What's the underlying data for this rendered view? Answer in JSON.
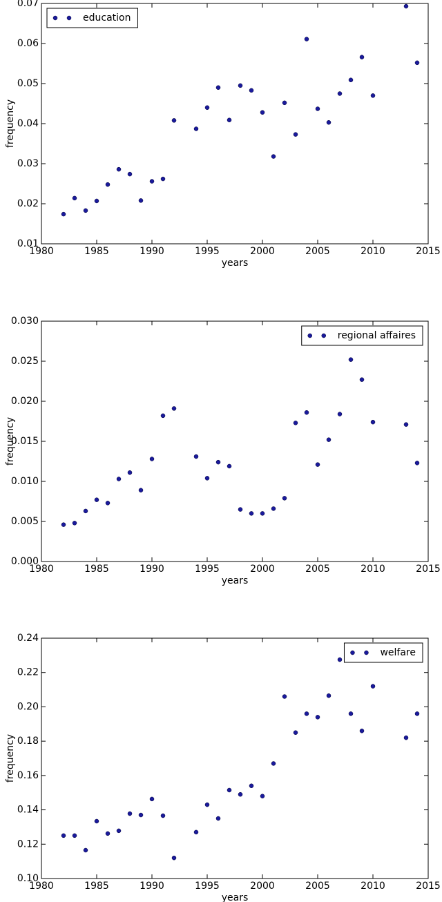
{
  "chart_data": [
    {
      "type": "scatter",
      "xlabel": "years",
      "ylabel": "frequency",
      "legend": "upper-left",
      "x": [
        1982,
        1983,
        1984,
        1985,
        1986,
        1987,
        1988,
        1989,
        1990,
        1991,
        1992,
        1994,
        1995,
        1996,
        1997,
        1998,
        1999,
        2000,
        2001,
        2002,
        2003,
        2004,
        2005,
        2006,
        2007,
        2008,
        2009,
        2010,
        2013,
        2014
      ],
      "series": [
        {
          "name": "education",
          "color": "#1a1a9c",
          "values": [
            0.0174,
            0.0214,
            0.0183,
            0.0207,
            0.0248,
            0.0286,
            0.0274,
            0.0208,
            0.0256,
            0.0262,
            0.0408,
            0.0387,
            0.044,
            0.049,
            0.0409,
            0.0495,
            0.0483,
            0.0428,
            0.0318,
            0.0452,
            0.0373,
            0.0611,
            0.0437,
            0.0403,
            0.0475,
            0.0509,
            0.0566,
            0.047,
            0.0693,
            0.0552
          ]
        }
      ],
      "xlim": [
        1980,
        2015
      ],
      "xticks": [
        1980,
        1985,
        1990,
        1995,
        2000,
        2005,
        2010,
        2015
      ],
      "ylim": [
        0.01,
        0.07
      ],
      "yticks": [
        0.01,
        0.02,
        0.03,
        0.04,
        0.05,
        0.06,
        0.07
      ]
    },
    {
      "type": "scatter",
      "xlabel": "years",
      "ylabel": "frequency",
      "legend": "upper-right",
      "x": [
        1982,
        1983,
        1984,
        1985,
        1986,
        1987,
        1988,
        1989,
        1990,
        1991,
        1992,
        1994,
        1995,
        1996,
        1997,
        1998,
        1999,
        2000,
        2001,
        2002,
        2003,
        2004,
        2005,
        2006,
        2007,
        2008,
        2009,
        2010,
        2013,
        2014
      ],
      "series": [
        {
          "name": "regional affaires",
          "color": "#1a1a9c",
          "values": [
            0.0046,
            0.0048,
            0.0063,
            0.0077,
            0.0073,
            0.0103,
            0.0111,
            0.0089,
            0.0128,
            0.0182,
            0.0191,
            0.0131,
            0.0104,
            0.0124,
            0.0119,
            0.0065,
            0.006,
            0.006,
            0.0066,
            0.0079,
            0.0173,
            0.0186,
            0.0121,
            0.0152,
            0.0184,
            0.0252,
            0.0227,
            0.0174,
            0.0171,
            0.0123
          ]
        }
      ],
      "xlim": [
        1980,
        2015
      ],
      "xticks": [
        1980,
        1985,
        1990,
        1995,
        2000,
        2005,
        2010,
        2015
      ],
      "ylim": [
        0,
        0.03
      ],
      "yticks": [
        {
          "value": 0,
          "label": "0.000"
        },
        0.005,
        {
          "value": 0.01,
          "label": "0.010"
        },
        0.015,
        {
          "value": 0.02,
          "label": "0.020"
        },
        0.025,
        {
          "value": 0.03,
          "label": "0.030"
        }
      ]
    },
    {
      "type": "scatter",
      "xlabel": "years",
      "ylabel": "frequency",
      "legend": "upper-right",
      "x": [
        1982,
        1983,
        1984,
        1985,
        1986,
        1987,
        1988,
        1989,
        1990,
        1991,
        1992,
        1994,
        1995,
        1996,
        1997,
        1998,
        1999,
        2000,
        2001,
        2002,
        2003,
        2004,
        2005,
        2006,
        2007,
        2008,
        2009,
        2010,
        2013,
        2014
      ],
      "series": [
        {
          "name": "welfare",
          "color": "#1a1a9c",
          "values": [
            0.125,
            0.125,
            0.1165,
            0.1334,
            0.1262,
            0.1278,
            0.1378,
            0.137,
            0.1463,
            0.1366,
            0.112,
            0.127,
            0.143,
            0.135,
            0.1515,
            0.149,
            0.154,
            0.148,
            0.167,
            0.206,
            0.185,
            0.196,
            0.194,
            0.2065,
            0.2275,
            0.196,
            0.186,
            0.212,
            0.182,
            0.196
          ]
        }
      ],
      "xlim": [
        1980,
        2015
      ],
      "xticks": [
        1980,
        1985,
        1990,
        1995,
        2000,
        2005,
        2010,
        2015
      ],
      "ylim": [
        0.1,
        0.24
      ],
      "yticks": [
        {
          "value": 0.1,
          "label": "0.10"
        },
        0.12,
        0.14,
        0.16,
        0.18,
        {
          "value": 0.2,
          "label": "0.20"
        },
        0.22,
        0.24
      ]
    }
  ]
}
